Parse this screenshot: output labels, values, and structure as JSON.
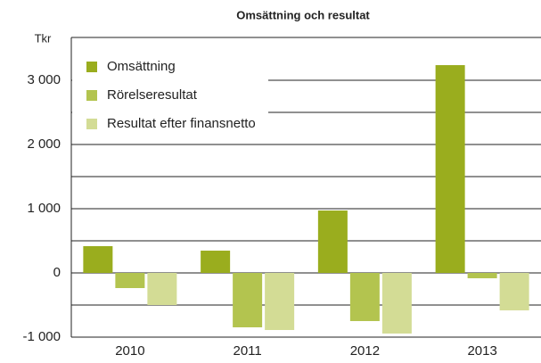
{
  "chart_data": {
    "type": "bar",
    "title": "Omsättning och resultat",
    "y_axis_label": "Tkr",
    "categories": [
      "2010",
      "2011",
      "2012",
      "2013"
    ],
    "series": [
      {
        "name": "Omsättning",
        "color": "#9aad1e",
        "values": [
          417,
          347,
          972,
          3236
        ]
      },
      {
        "name": "Rörelseresultat",
        "color": "#b3c44f",
        "values": [
          -236,
          -847,
          -750,
          -83
        ]
      },
      {
        "name": "Resultat efter finansnetto",
        "color": "#d3dc95",
        "values": [
          -500,
          -889,
          -944,
          -583
        ]
      }
    ],
    "ylim": [
      -1000,
      3667
    ],
    "yticks": [
      {
        "value": -1000,
        "label": "-1 000"
      },
      0,
      {
        "value": 1000,
        "label": "1 000"
      },
      {
        "value": 2000,
        "label": "2 000"
      },
      {
        "value": 3000,
        "label": "3 000"
      }
    ],
    "minor_yticks": [
      -500,
      500,
      1500,
      2500
    ],
    "grid": true,
    "legend": "upper left"
  }
}
